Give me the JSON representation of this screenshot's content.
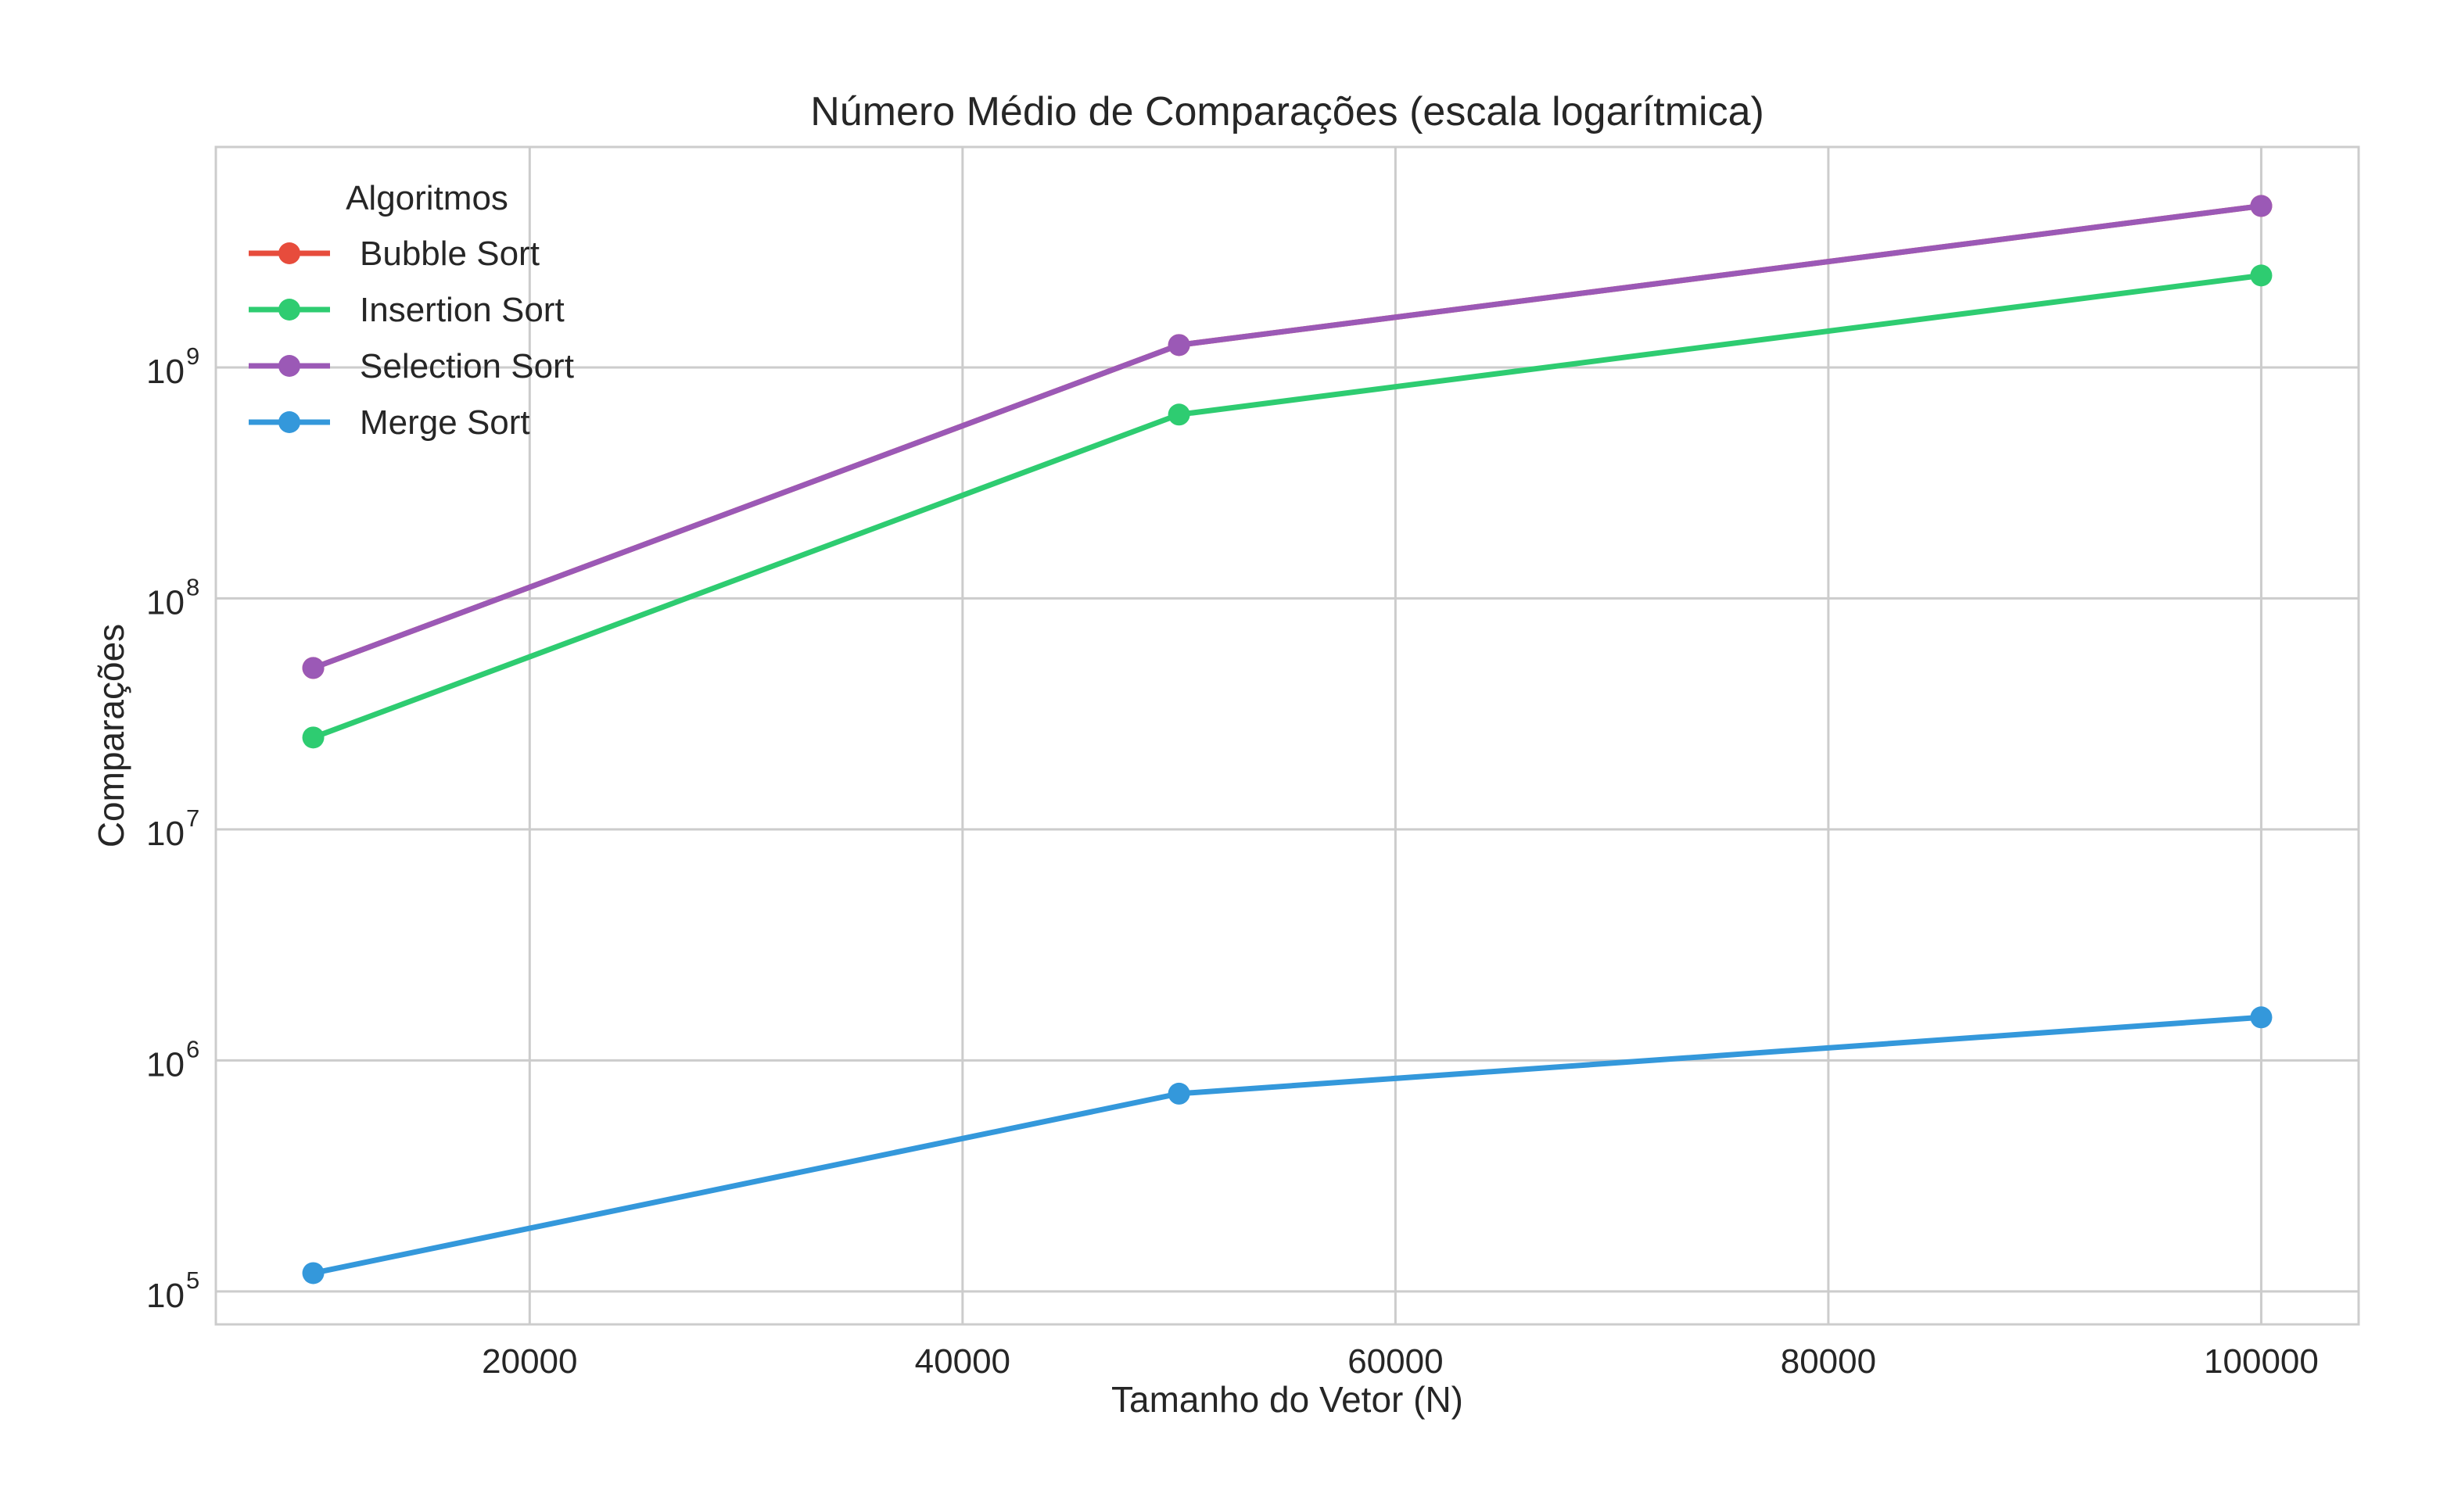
{
  "chart_data": {
    "type": "line",
    "title": "Número Médio de Comparações (escala logarítmica)",
    "xlabel": "Tamanho do Vetor (N)",
    "ylabel": "Comparações",
    "x": [
      10000,
      50000,
      100000
    ],
    "xlim": [
      5500,
      104500
    ],
    "ylim": [
      72000,
      9000000000
    ],
    "yscale": "log",
    "xticks": [
      20000,
      40000,
      60000,
      80000,
      100000
    ],
    "xtick_labels": [
      "20000",
      "40000",
      "60000",
      "80000",
      "100000"
    ],
    "yticks": [
      100000,
      1000000,
      10000000,
      100000000,
      1000000000
    ],
    "ytick_labels": [
      {
        "base": "10",
        "exp": "5"
      },
      {
        "base": "10",
        "exp": "6"
      },
      {
        "base": "10",
        "exp": "7"
      },
      {
        "base": "10",
        "exp": "8"
      },
      {
        "base": "10",
        "exp": "9"
      }
    ],
    "grid": true,
    "legend": {
      "title": "Algoritmos",
      "position": "top-left"
    },
    "series": [
      {
        "name": "Bubble Sort",
        "color": "#e74c3c",
        "values": [
          49995000,
          1249975000,
          4999950000
        ]
      },
      {
        "name": "Insertion Sort",
        "color": "#2ecc71",
        "values": [
          25000000,
          625000000,
          2500000000
        ]
      },
      {
        "name": "Selection Sort",
        "color": "#9b59b6",
        "values": [
          49995000,
          1249975000,
          4999950000
        ]
      },
      {
        "name": "Merge Sort",
        "color": "#3498db",
        "values": [
          120000,
          718000,
          1536000
        ]
      }
    ]
  }
}
